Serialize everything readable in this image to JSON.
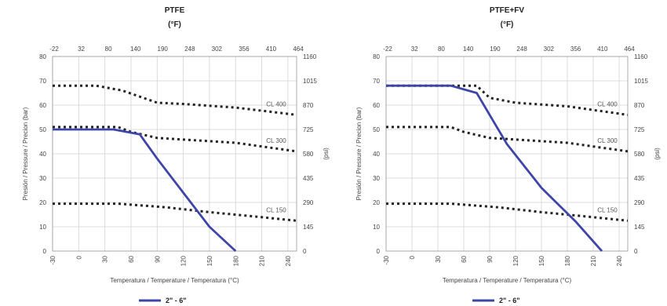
{
  "chart_data": [
    {
      "type": "line",
      "title": "PTFE",
      "subtitle": "(°F)",
      "xlabel": "Temperatura / Temperature / Temperatura (°C)",
      "ylabel": "Presión / Pressure / Precion (bar)",
      "y2label": "(psi)",
      "xlim": [
        -30,
        250
      ],
      "ylim": [
        0,
        80
      ],
      "x_ticks": [
        -30,
        0,
        30,
        60,
        90,
        120,
        150,
        180,
        210,
        240
      ],
      "y_ticks": [
        0,
        10,
        20,
        30,
        40,
        50,
        60,
        70,
        80
      ],
      "x2_ticks": [
        "-22",
        "32",
        "80",
        "140",
        "190",
        "248",
        "302",
        "356",
        "410",
        "464"
      ],
      "y2_ticks": [
        "0",
        "145",
        "290",
        "435",
        "580",
        "725",
        "870",
        "1015",
        "1160"
      ],
      "grid": true,
      "legend": {
        "position": "bottom-left",
        "label": "2\" - 6\""
      },
      "series": [
        {
          "name": "CL 400",
          "style": "dotted",
          "x": [
            -30,
            20,
            50,
            90,
            120,
            180,
            250
          ],
          "y": [
            68,
            68,
            66,
            61,
            60.5,
            59,
            56
          ]
        },
        {
          "name": "CL 300",
          "style": "dotted",
          "x": [
            -30,
            45,
            60,
            90,
            180,
            250
          ],
          "y": [
            51,
            51,
            49,
            46.5,
            44.5,
            41
          ]
        },
        {
          "name": "CL 150",
          "style": "dotted",
          "x": [
            -30,
            45,
            100,
            150,
            200,
            250
          ],
          "y": [
            19.5,
            19.5,
            18,
            16,
            14.3,
            12.5
          ]
        },
        {
          "name": "2\" - 6\"",
          "style": "solid",
          "color": "#3f45a8",
          "x": [
            -30,
            40,
            70,
            90,
            120,
            150,
            180
          ],
          "y": [
            50,
            50,
            48,
            38,
            24,
            10,
            0
          ]
        }
      ]
    },
    {
      "type": "line",
      "title": "PTFE+FV",
      "subtitle": "(°F)",
      "xlabel": "Temperatura / Temperature / Temperatura (°C)",
      "ylabel": "Presión / Pressure / Precion (bar)",
      "y2label": "(psi)",
      "xlim": [
        -30,
        250
      ],
      "ylim": [
        0,
        80
      ],
      "x_ticks": [
        -30,
        0,
        30,
        60,
        90,
        120,
        150,
        180,
        210,
        240
      ],
      "y_ticks": [
        0,
        10,
        20,
        30,
        40,
        50,
        60,
        70,
        80
      ],
      "x2_ticks": [
        "-22",
        "32",
        "80",
        "140",
        "190",
        "248",
        "302",
        "356",
        "410",
        "464"
      ],
      "y2_ticks": [
        "0",
        "145",
        "290",
        "435",
        "580",
        "725",
        "870",
        "1015",
        "1160"
      ],
      "grid": true,
      "legend": {
        "position": "bottom-left",
        "label": "2\" - 6\""
      },
      "series": [
        {
          "name": "CL 400",
          "style": "dotted",
          "x": [
            -30,
            75,
            90,
            120,
            180,
            250
          ],
          "y": [
            68,
            68,
            63,
            61,
            59.5,
            56
          ]
        },
        {
          "name": "CL 300",
          "style": "dotted",
          "x": [
            -30,
            45,
            60,
            90,
            180,
            250
          ],
          "y": [
            51,
            51,
            49,
            46.5,
            44.5,
            41
          ]
        },
        {
          "name": "CL 150",
          "style": "dotted",
          "x": [
            -30,
            45,
            100,
            150,
            200,
            250
          ],
          "y": [
            19.5,
            19.5,
            18,
            16,
            14.3,
            12.5
          ]
        },
        {
          "name": "2\" - 6\"",
          "style": "solid",
          "color": "#3f45a8",
          "x": [
            -30,
            45,
            75,
            110,
            150,
            190,
            220
          ],
          "y": [
            68,
            68,
            65,
            44,
            26,
            12,
            0
          ]
        }
      ]
    }
  ]
}
